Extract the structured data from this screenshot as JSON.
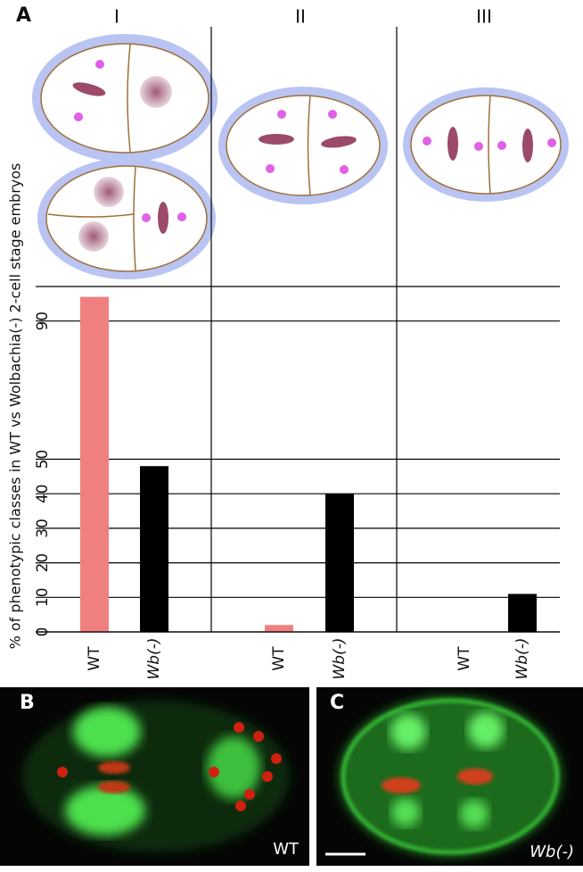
{
  "panel_labels": [
    "A",
    "B",
    "C"
  ],
  "chart_data": {
    "type": "bar",
    "y_label": "% of phenotypic classes in WT vs Wolbachia(-) 2-cell stage embryos",
    "categories": [
      "I",
      "II",
      "III"
    ],
    "series": [
      {
        "name": "WT",
        "color": "#f08080",
        "values": [
          97,
          2,
          0
        ]
      },
      {
        "name": "Wb(-)",
        "color": "#000000",
        "values": [
          48,
          40,
          11
        ]
      }
    ],
    "ylim": [
      0,
      100
    ],
    "yticks": [
      0,
      10,
      20,
      30,
      40,
      50,
      90
    ],
    "grid": true
  },
  "images": [
    {
      "label": "WT"
    },
    {
      "label": "Wb(-)"
    }
  ]
}
